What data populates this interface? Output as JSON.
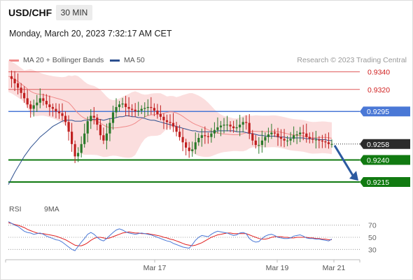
{
  "header": {
    "symbol": "USD/CHF",
    "timeframe": "30 MIN"
  },
  "datetime": "Monday, March 20, 2023 7:32:17 AM CET",
  "legend": {
    "ma20": {
      "label": "MA 20 + Bollinger Bands",
      "color": "#f08a8a"
    },
    "ma50": {
      "label": "MA 50",
      "color": "#2c4f8f"
    }
  },
  "research": "Research © 2023 Trading Central",
  "rsi_legend": {
    "rsi": {
      "label": "RSI",
      "color": "#4a78d6"
    },
    "ma9": {
      "label": "9MA",
      "color": "#e02020"
    }
  },
  "colors": {
    "up": "#2a7a2a",
    "down": "#c02020",
    "support": "#117a11",
    "resistance": "#e05a5a",
    "pivot": "#4a78d6",
    "band": "#fbdada",
    "arrow": "#2c5aa0",
    "current": "#2b2b2b"
  },
  "chart_data": [
    {
      "type": "candlestick",
      "x_ticks": [
        "Mar 17",
        "Mar 19",
        "Mar 21"
      ],
      "ylim": [
        0.918,
        0.935
      ],
      "levels": [
        {
          "value": 0.934,
          "label": "0.9340",
          "kind": "resistance"
        },
        {
          "value": 0.932,
          "label": "0.9320",
          "kind": "resistance"
        },
        {
          "value": 0.9295,
          "label": "0.9295",
          "kind": "pivot"
        },
        {
          "value": 0.9258,
          "label": "0.9258",
          "kind": "current"
        },
        {
          "value": 0.924,
          "label": "0.9240",
          "kind": "support"
        },
        {
          "value": 0.9215,
          "label": "0.9215",
          "kind": "support"
        }
      ],
      "close_series": [
        0.9335,
        0.9332,
        0.9327,
        0.9322,
        0.9316,
        0.931,
        0.9303,
        0.9298,
        0.9302,
        0.9305,
        0.931,
        0.9307,
        0.9303,
        0.93,
        0.9298,
        0.9295,
        0.9293,
        0.929,
        0.9283,
        0.9272,
        0.9258,
        0.9244,
        0.9248,
        0.9258,
        0.927,
        0.9284,
        0.929,
        0.9288,
        0.928,
        0.9268,
        0.9262,
        0.927,
        0.9282,
        0.9294,
        0.93,
        0.9303,
        0.9304,
        0.93,
        0.9298,
        0.9297,
        0.9295,
        0.9296,
        0.9298,
        0.9299,
        0.93,
        0.9299,
        0.9296,
        0.9292,
        0.9289,
        0.9285,
        0.9283,
        0.9282,
        0.9278,
        0.9272,
        0.9266,
        0.926,
        0.9254,
        0.925,
        0.9252,
        0.926,
        0.9265,
        0.9268,
        0.9267,
        0.9266,
        0.927,
        0.9274,
        0.9277,
        0.9279,
        0.928,
        0.928,
        0.9278,
        0.9276,
        0.9277,
        0.928,
        0.9283,
        0.9282,
        0.927,
        0.9262,
        0.9257,
        0.9257,
        0.9262,
        0.9266,
        0.9269,
        0.9271,
        0.927,
        0.9266,
        0.9264,
        0.9262,
        0.9262,
        0.9264,
        0.9268,
        0.9269,
        0.9271,
        0.927,
        0.9266,
        0.9264,
        0.9263,
        0.9263,
        0.9262,
        0.9261,
        0.926,
        0.9258,
        0.9258
      ],
      "ma50": [
        0.9212,
        0.9219,
        0.9226,
        0.9232,
        0.9238,
        0.9244,
        0.9249,
        0.9254,
        0.9258,
        0.9262,
        0.9266,
        0.9269,
        0.9272,
        0.9275,
        0.9278,
        0.928,
        0.9282,
        0.9284,
        0.9285,
        0.9285,
        0.9285,
        0.9284,
        0.9284,
        0.9284,
        0.9285,
        0.9285,
        0.9286,
        0.9286,
        0.9286,
        0.9286,
        0.9285,
        0.9286,
        0.9287,
        0.9287,
        0.9288,
        0.9289,
        0.9289,
        0.929,
        0.929,
        0.9289,
        0.9289,
        0.9288,
        0.9288,
        0.9287,
        0.9286,
        0.9285,
        0.9285,
        0.9284,
        0.9283,
        0.9282,
        0.9281,
        0.928,
        0.9279,
        0.9278,
        0.9277,
        0.9276,
        0.9275,
        0.9274,
        0.9273,
        0.9273,
        0.9272,
        0.9272,
        0.9272,
        0.9272,
        0.9272,
        0.9272,
        0.9273,
        0.9273,
        0.9273,
        0.9273,
        0.9273,
        0.9273,
        0.9272,
        0.9272,
        0.9272,
        0.9271,
        0.927,
        0.927,
        0.9269,
        0.9268,
        0.9268,
        0.9267,
        0.9267,
        0.9267,
        0.9267,
        0.9266,
        0.9266,
        0.9266,
        0.9265,
        0.9265,
        0.9265,
        0.9265,
        0.9265,
        0.9265,
        0.9264,
        0.9264,
        0.9264,
        0.9264,
        0.9263,
        0.9263,
        0.9263,
        0.9262,
        0.9262
      ]
    },
    {
      "type": "line",
      "ylim": [
        20,
        80
      ],
      "y_ticks": [
        70,
        50,
        30
      ],
      "rsi": [
        76,
        73,
        70,
        68,
        64,
        60,
        58,
        57,
        55,
        56,
        57,
        55,
        52,
        50,
        48,
        46,
        45,
        42,
        38,
        34,
        30,
        28,
        35,
        42,
        48,
        55,
        58,
        55,
        50,
        46,
        44,
        48,
        53,
        58,
        62,
        64,
        62,
        59,
        57,
        56,
        55,
        56,
        57,
        56,
        55,
        54,
        52,
        50,
        48,
        46,
        44,
        43,
        40,
        38,
        36,
        34,
        33,
        32,
        38,
        45,
        50,
        53,
        52,
        51,
        55,
        58,
        60,
        59,
        58,
        57,
        55,
        53,
        54,
        57,
        58,
        56,
        48,
        44,
        42,
        43,
        48,
        52,
        54,
        55,
        53,
        50,
        49,
        48,
        48,
        49,
        52,
        53,
        54,
        52,
        49,
        48,
        48,
        47,
        47,
        46,
        45,
        44,
        47
      ],
      "ma9": [
        74,
        73,
        71,
        70,
        68,
        66,
        63,
        61,
        59,
        57,
        56,
        56,
        55,
        54,
        53,
        52,
        50,
        48,
        46,
        43,
        40,
        37,
        36,
        36,
        38,
        41,
        45,
        48,
        50,
        50,
        49,
        48,
        49,
        51,
        53,
        55,
        57,
        58,
        59,
        58,
        57,
        57,
        56,
        56,
        56,
        55,
        54,
        53,
        52,
        50,
        49,
        47,
        46,
        44,
        42,
        40,
        38,
        37,
        36,
        37,
        39,
        41,
        44,
        47,
        50,
        52,
        54,
        55,
        56,
        57,
        57,
        56,
        56,
        56,
        56,
        56,
        54,
        52,
        50,
        48,
        47,
        47,
        48,
        50,
        51,
        51,
        51,
        50,
        50,
        49,
        49,
        50,
        50,
        50,
        50,
        49,
        49,
        48,
        48,
        47,
        47,
        46,
        46
      ]
    }
  ]
}
